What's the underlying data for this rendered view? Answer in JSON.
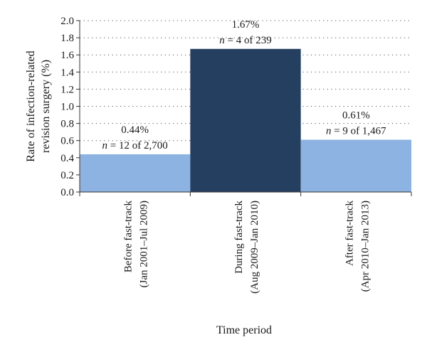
{
  "chart_data": {
    "type": "bar",
    "xlabel": "Time period",
    "ylabel": [
      "Rate of infection-related",
      "revision surgery (%)"
    ],
    "ylim": [
      0,
      2.0
    ],
    "yticks": [
      "0.0",
      "0.2",
      "0.4",
      "0.6",
      "0.8",
      "1.0",
      "1.2",
      "1.4",
      "1.6",
      "1.8",
      "2.0"
    ],
    "grid": "dotted horizontal",
    "categories": [
      [
        "Before fast-track",
        "(Jan 2001–Jul 2009)"
      ],
      [
        "During fast-track",
        "(Aug 2009–Jan 2010)"
      ],
      [
        "After fast-track",
        "(Apr 2010–Jan 2013)"
      ]
    ],
    "values": [
      0.44,
      1.67,
      0.61
    ],
    "colors": [
      "#8db3e2",
      "#243f60",
      "#8db3e2"
    ],
    "data_labels": [
      {
        "percent": "0.44%",
        "n": "n",
        "rest": " = 12 of 2,700"
      },
      {
        "percent": "1.67%",
        "n": "n",
        "rest": " = 4 of 239"
      },
      {
        "percent": "0.61%",
        "n": "n",
        "rest": " = 9 of 1,467"
      }
    ]
  }
}
